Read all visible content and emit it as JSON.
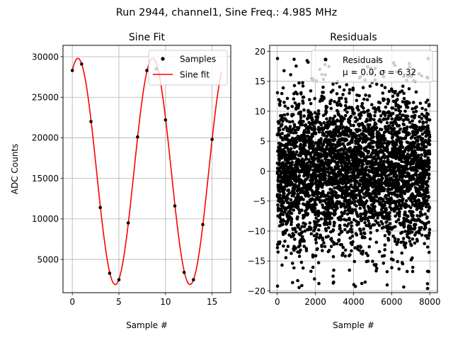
{
  "figure": {
    "suptitle": "Run 2944, channel1, Sine Freq.: 4.985 MHz"
  },
  "chart_data": [
    {
      "type": "scatter",
      "title": "Sine Fit",
      "xlabel": "Sample #",
      "ylabel": "ADC Counts",
      "xlim": [
        -1,
        17
      ],
      "ylim": [
        900,
        31400
      ],
      "xticks": [
        0,
        5,
        10,
        15
      ],
      "yticks": [
        5000,
        10000,
        15000,
        20000,
        25000,
        30000
      ],
      "grid": true,
      "legend": {
        "placement": "upper right",
        "entries": [
          "Samples",
          "Sine fit"
        ]
      },
      "series": [
        {
          "name": "Samples",
          "kind": "points",
          "color": "#000000",
          "x": [
            0,
            1,
            2,
            3,
            4,
            5,
            6,
            7,
            8,
            9,
            10,
            11,
            12,
            13,
            14,
            15
          ],
          "y": [
            28300,
            29100,
            22000,
            11400,
            3300,
            2500,
            9500,
            20100,
            28300,
            28500,
            22200,
            11600,
            3400,
            2500,
            9300,
            19800
          ]
        },
        {
          "name": "Sine fit",
          "kind": "line",
          "color": "#ff0000",
          "function": {
            "offset": 15850,
            "amplitude": 13950,
            "period": 8.02,
            "x_at_peak": 0.6,
            "x_range": [
              0,
              16
            ]
          }
        }
      ]
    },
    {
      "type": "scatter",
      "title": "Residuals",
      "xlabel": "Sample #",
      "ylabel": "",
      "xlim": [
        -400,
        8400
      ],
      "ylim": [
        -20.3,
        21
      ],
      "xticks": [
        0,
        2000,
        4000,
        6000,
        8000
      ],
      "yticks": [
        -20,
        -15,
        -10,
        -5,
        0,
        5,
        10,
        15,
        20
      ],
      "grid": true,
      "legend": {
        "placement": "upper right",
        "entries": [
          "Residuals",
          "μ = 0.0, σ = 6.32"
        ]
      },
      "series": [
        {
          "name": "Residuals",
          "kind": "points",
          "color": "#000000",
          "n_points": 8000,
          "mean": 0.0,
          "std": 6.32,
          "range": [
            -19.6,
            18.8
          ],
          "x_range": [
            0,
            7999
          ],
          "highlighted_points": [
            {
              "x": 10,
              "y": 18.8
            },
            {
              "x": 10,
              "y": -19.2
            },
            {
              "x": 2500,
              "y": 17.8
            },
            {
              "x": 7880,
              "y": -19.6
            },
            {
              "x": 7880,
              "y": -18.8
            },
            {
              "x": 700,
              "y": 16.1
            }
          ]
        }
      ]
    }
  ]
}
